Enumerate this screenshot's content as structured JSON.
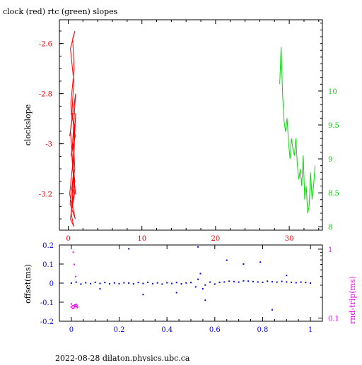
{
  "title": "clock (red) rtc (green) slopes",
  "footer": "2022-08-28  dilaton.physics.ubc.ca",
  "colors": {
    "clock": "#ff0000",
    "rtc": "#00dd00",
    "offset": "#0000ff",
    "rndtrip": "#ff00ff",
    "axis": "#000000"
  },
  "chart_data": [
    {
      "type": "line",
      "title": "clock (red) rtc (green) slopes",
      "xlim": [
        -1.2,
        34.5
      ],
      "xticks": [
        0,
        10,
        20,
        30
      ],
      "ylabel": "clockslope",
      "ylim": [
        -3.345,
        -2.505
      ],
      "yticks_left": [
        -3.2,
        -3.0,
        -2.8,
        -2.6
      ],
      "ytick_labels_left": [
        "-3.2",
        "-3",
        "-2.8",
        "-2.6"
      ],
      "ylim_right": [
        7.95,
        11.05
      ],
      "yticks_right": [
        8,
        8.5,
        9,
        9.5,
        10
      ],
      "ytick_labels_right": [
        "8",
        "8.5",
        "9",
        "9.5",
        "10"
      ],
      "series": [
        {
          "axis": "left",
          "x": [
            0.2,
            0.5,
            0.35,
            0.8,
            0.6,
            0.9,
            0.3,
            0.75,
            0.5,
            0.95,
            0.4,
            0.85,
            0.65,
            1.0,
            0.45,
            0.9,
            0.7,
            0.55,
            1.0,
            0.3,
            0.8,
            0.6,
            0.95,
            0.25,
            0.7,
            0.5,
            0.85,
            0.4,
            0.75,
            0.3,
            0.9,
            0.6,
            0.2,
            0.5,
            1.0,
            0.3
          ],
          "y": [
            -2.97,
            -2.9,
            -2.84,
            -2.7,
            -2.58,
            -2.55,
            -2.62,
            -2.75,
            -2.88,
            -2.97,
            -3.05,
            -2.92,
            -3.1,
            -3.2,
            -3.18,
            -3.1,
            -3.0,
            -3.02,
            -2.8,
            -2.95,
            -3.15,
            -3.25,
            -3.3,
            -3.24,
            -3.12,
            -3.05,
            -3.2,
            -3.28,
            -3.33,
            -3.3,
            -3.15,
            -3.08,
            -3.2,
            -3.25,
            -2.88,
            -2.88
          ]
        },
        {
          "axis": "right",
          "x": [
            28.7,
            28.9,
            29.1,
            29.3,
            29.5,
            29.7,
            29.9,
            30.1,
            30.3,
            30.5,
            30.7,
            30.9,
            31.1,
            31.3,
            31.5,
            31.7,
            31.9,
            32.1,
            32.3,
            32.5,
            32.7,
            32.9,
            33.1,
            33.3,
            33.5
          ],
          "y": [
            10.1,
            10.65,
            9.95,
            9.55,
            9.4,
            9.6,
            9.25,
            9.0,
            9.3,
            9.15,
            9.05,
            9.3,
            8.9,
            8.7,
            8.85,
            8.6,
            9.05,
            8.4,
            8.6,
            8.2,
            8.3,
            8.8,
            8.4,
            8.6,
            8.9
          ]
        }
      ]
    },
    {
      "type": "scatter",
      "xlim": [
        -0.05,
        1.05
      ],
      "xticks": [
        0,
        0.2,
        0.4,
        0.6,
        0.8,
        1.0
      ],
      "xtick_labels": [
        "0",
        "0.2",
        "0.4",
        "0.6",
        "0.8",
        "1"
      ],
      "ylabel": "offset(ms)",
      "ylim": [
        -0.2,
        0.2
      ],
      "yticks": [
        -0.2,
        -0.1,
        0,
        0.1,
        0.2
      ],
      "ytick_labels": [
        "-0.2",
        "-0.1",
        "0",
        "0.1",
        "0.2"
      ],
      "ylabel_right": "rnd-trip(ms)",
      "ylim_right": [
        0.09,
        1.15
      ],
      "yscale_right": "log",
      "yticks_right": [
        0.1,
        1
      ],
      "ytick_labels_right": [
        "0.1",
        "1"
      ],
      "series": [
        {
          "axis": "left",
          "x": [
            0.0,
            0.02,
            0.04,
            0.06,
            0.08,
            0.1,
            0.12,
            0.14,
            0.16,
            0.18,
            0.2,
            0.22,
            0.24,
            0.26,
            0.28,
            0.3,
            0.32,
            0.34,
            0.36,
            0.38,
            0.4,
            0.42,
            0.44,
            0.46,
            0.48,
            0.5,
            0.52,
            0.53,
            0.54,
            0.55,
            0.56,
            0.58,
            0.6,
            0.62,
            0.64,
            0.66,
            0.68,
            0.7,
            0.72,
            0.74,
            0.76,
            0.78,
            0.8,
            0.82,
            0.84,
            0.86,
            0.88,
            0.9,
            0.92,
            0.94,
            0.96,
            0.98,
            1.0,
            0.24,
            0.53,
            0.3,
            0.65,
            0.72,
            0.79,
            0.84,
            0.44,
            0.56,
            0.12,
            0.9
          ],
          "y": [
            0.0,
            0.005,
            -0.005,
            0.002,
            -0.003,
            0.004,
            -0.002,
            0.003,
            -0.004,
            0.001,
            -0.003,
            0.002,
            0.0,
            -0.004,
            0.003,
            -0.002,
            0.004,
            -0.003,
            0.001,
            -0.005,
            0.002,
            -0.002,
            0.003,
            -0.004,
            0.001,
            0.003,
            -0.02,
            0.02,
            0.05,
            -0.03,
            -0.01,
            0.005,
            -0.005,
            0.004,
            0.006,
            0.01,
            0.008,
            0.005,
            0.012,
            0.01,
            0.008,
            0.006,
            0.004,
            0.01,
            0.007,
            0.005,
            0.009,
            0.006,
            0.004,
            0.002,
            0.005,
            0.003,
            0.0,
            0.18,
            0.19,
            -0.06,
            0.12,
            0.1,
            0.11,
            -0.14,
            -0.05,
            -0.09,
            -0.03,
            0.04
          ]
        },
        {
          "axis": "right",
          "x": [
            0.0,
            0.005,
            0.01,
            0.015,
            0.02,
            0.025,
            0.0,
            0.005,
            0.01,
            0.015,
            0.02,
            0.025,
            0.008,
            0.012,
            0.018
          ],
          "y": [
            0.145,
            0.15,
            0.14,
            0.155,
            0.148,
            0.142,
            0.16,
            0.138,
            0.152,
            0.146,
            0.158,
            0.15,
            0.9,
            0.6,
            0.4
          ]
        }
      ]
    }
  ]
}
